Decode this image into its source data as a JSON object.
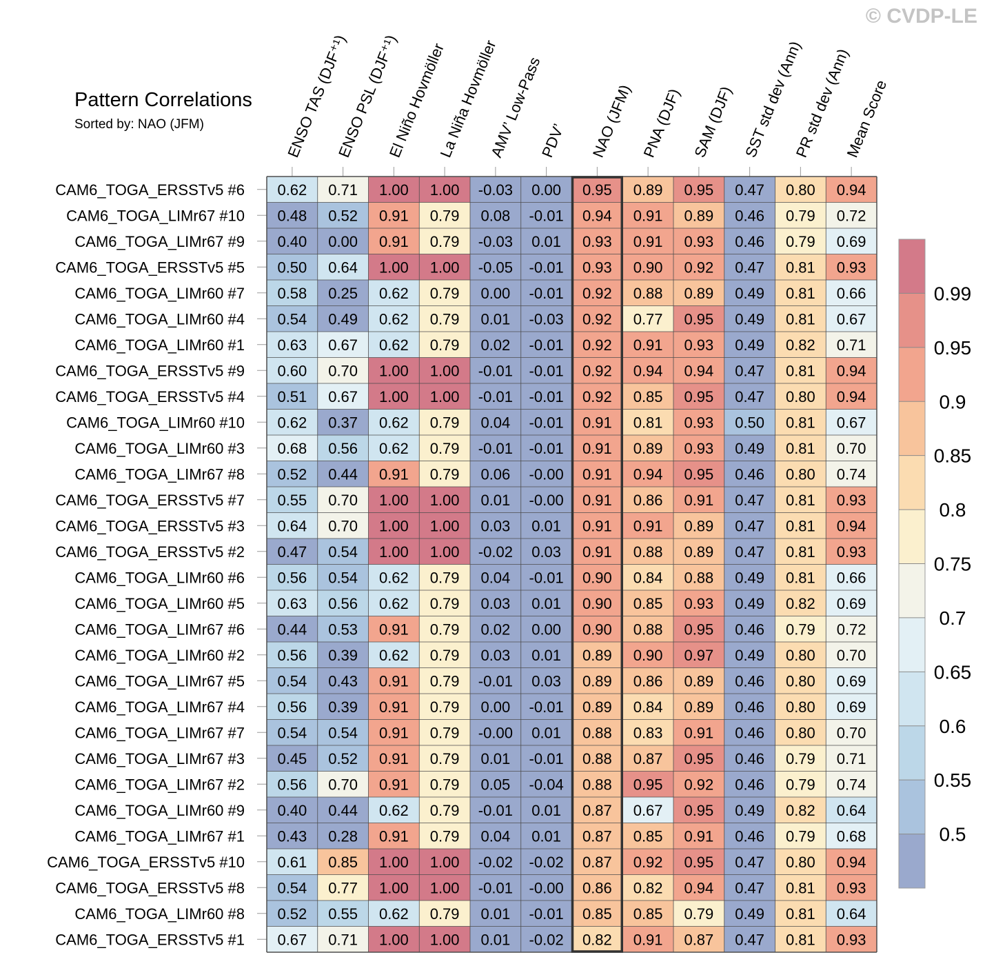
{
  "watermark": "© CVDP-LE",
  "chart_data": {
    "type": "heatmap",
    "title": "Pattern Correlations",
    "subtitle": "Sorted by: NAO (JFM)",
    "highlight_column": "NAO (JFM)",
    "columns": [
      "ENSO TAS (DJF⁺¹)",
      "ENSO PSL (DJF⁺¹)",
      "El Niño Hovmöller",
      "La Niña Hovmöller",
      "AMV’ Low-Pass",
      "PDV’",
      "NAO (JFM)",
      "PNA (DJF)",
      "SAM (DJF)",
      "SST std dev (Ann)",
      "PR std dev (Ann)",
      "Mean Score"
    ],
    "rows": [
      {
        "label": "CAM6_TOGA_ERSSTv5 #6",
        "values": [
          "0.62",
          "0.71",
          "1.00",
          "1.00",
          "-0.03",
          "0.00",
          "0.95",
          "0.89",
          "0.95",
          "0.47",
          "0.80",
          "0.94"
        ]
      },
      {
        "label": "CAM6_TOGA_LIMr67 #10",
        "values": [
          "0.48",
          "0.52",
          "0.91",
          "0.79",
          "0.08",
          "-0.01",
          "0.94",
          "0.91",
          "0.89",
          "0.46",
          "0.79",
          "0.72"
        ]
      },
      {
        "label": "CAM6_TOGA_LIMr67 #9",
        "values": [
          "0.40",
          "0.00",
          "0.91",
          "0.79",
          "-0.03",
          "0.01",
          "0.93",
          "0.91",
          "0.93",
          "0.46",
          "0.79",
          "0.69"
        ]
      },
      {
        "label": "CAM6_TOGA_ERSSTv5 #5",
        "values": [
          "0.50",
          "0.64",
          "1.00",
          "1.00",
          "-0.05",
          "-0.01",
          "0.93",
          "0.90",
          "0.92",
          "0.47",
          "0.81",
          "0.93"
        ]
      },
      {
        "label": "CAM6_TOGA_LIMr60 #7",
        "values": [
          "0.58",
          "0.25",
          "0.62",
          "0.79",
          "0.00",
          "-0.01",
          "0.92",
          "0.88",
          "0.89",
          "0.49",
          "0.81",
          "0.66"
        ]
      },
      {
        "label": "CAM6_TOGA_LIMr60 #4",
        "values": [
          "0.54",
          "0.49",
          "0.62",
          "0.79",
          "0.01",
          "-0.03",
          "0.92",
          "0.77",
          "0.95",
          "0.49",
          "0.81",
          "0.67"
        ]
      },
      {
        "label": "CAM6_TOGA_LIMr60 #1",
        "values": [
          "0.63",
          "0.67",
          "0.62",
          "0.79",
          "0.02",
          "-0.01",
          "0.92",
          "0.91",
          "0.93",
          "0.49",
          "0.82",
          "0.71"
        ]
      },
      {
        "label": "CAM6_TOGA_ERSSTv5 #9",
        "values": [
          "0.60",
          "0.70",
          "1.00",
          "1.00",
          "-0.01",
          "-0.01",
          "0.92",
          "0.94",
          "0.94",
          "0.47",
          "0.81",
          "0.94"
        ]
      },
      {
        "label": "CAM6_TOGA_ERSSTv5 #4",
        "values": [
          "0.51",
          "0.67",
          "1.00",
          "1.00",
          "-0.01",
          "-0.01",
          "0.92",
          "0.85",
          "0.95",
          "0.47",
          "0.80",
          "0.94"
        ]
      },
      {
        "label": "CAM6_TOGA_LIMr60 #10",
        "values": [
          "0.62",
          "0.37",
          "0.62",
          "0.79",
          "0.04",
          "-0.01",
          "0.91",
          "0.81",
          "0.93",
          "0.50",
          "0.81",
          "0.67"
        ]
      },
      {
        "label": "CAM6_TOGA_LIMr60 #3",
        "values": [
          "0.68",
          "0.56",
          "0.62",
          "0.79",
          "-0.01",
          "-0.01",
          "0.91",
          "0.89",
          "0.93",
          "0.49",
          "0.81",
          "0.70"
        ]
      },
      {
        "label": "CAM6_TOGA_LIMr67 #8",
        "values": [
          "0.52",
          "0.44",
          "0.91",
          "0.79",
          "0.06",
          "-0.00",
          "0.91",
          "0.94",
          "0.95",
          "0.46",
          "0.80",
          "0.74"
        ]
      },
      {
        "label": "CAM6_TOGA_ERSSTv5 #7",
        "values": [
          "0.55",
          "0.70",
          "1.00",
          "1.00",
          "0.01",
          "-0.00",
          "0.91",
          "0.86",
          "0.91",
          "0.47",
          "0.81",
          "0.93"
        ]
      },
      {
        "label": "CAM6_TOGA_ERSSTv5 #3",
        "values": [
          "0.64",
          "0.70",
          "1.00",
          "1.00",
          "0.03",
          "0.01",
          "0.91",
          "0.91",
          "0.89",
          "0.47",
          "0.81",
          "0.94"
        ]
      },
      {
        "label": "CAM6_TOGA_ERSSTv5 #2",
        "values": [
          "0.47",
          "0.54",
          "1.00",
          "1.00",
          "-0.02",
          "0.03",
          "0.91",
          "0.88",
          "0.89",
          "0.47",
          "0.81",
          "0.93"
        ]
      },
      {
        "label": "CAM6_TOGA_LIMr60 #6",
        "values": [
          "0.56",
          "0.54",
          "0.62",
          "0.79",
          "0.04",
          "-0.01",
          "0.90",
          "0.84",
          "0.88",
          "0.49",
          "0.81",
          "0.66"
        ]
      },
      {
        "label": "CAM6_TOGA_LIMr60 #5",
        "values": [
          "0.63",
          "0.56",
          "0.62",
          "0.79",
          "0.03",
          "0.01",
          "0.90",
          "0.85",
          "0.93",
          "0.49",
          "0.82",
          "0.69"
        ]
      },
      {
        "label": "CAM6_TOGA_LIMr67 #6",
        "values": [
          "0.44",
          "0.53",
          "0.91",
          "0.79",
          "0.02",
          "0.00",
          "0.90",
          "0.88",
          "0.95",
          "0.46",
          "0.79",
          "0.72"
        ]
      },
      {
        "label": "CAM6_TOGA_LIMr60 #2",
        "values": [
          "0.56",
          "0.39",
          "0.62",
          "0.79",
          "0.03",
          "0.01",
          "0.89",
          "0.90",
          "0.97",
          "0.49",
          "0.80",
          "0.70"
        ]
      },
      {
        "label": "CAM6_TOGA_LIMr67 #5",
        "values": [
          "0.54",
          "0.43",
          "0.91",
          "0.79",
          "-0.01",
          "0.03",
          "0.89",
          "0.86",
          "0.89",
          "0.46",
          "0.80",
          "0.69"
        ]
      },
      {
        "label": "CAM6_TOGA_LIMr67 #4",
        "values": [
          "0.56",
          "0.39",
          "0.91",
          "0.79",
          "0.00",
          "-0.01",
          "0.89",
          "0.84",
          "0.89",
          "0.46",
          "0.80",
          "0.69"
        ]
      },
      {
        "label": "CAM6_TOGA_LIMr67 #7",
        "values": [
          "0.54",
          "0.54",
          "0.91",
          "0.79",
          "-0.00",
          "0.01",
          "0.88",
          "0.83",
          "0.91",
          "0.46",
          "0.80",
          "0.70"
        ]
      },
      {
        "label": "CAM6_TOGA_LIMr67 #3",
        "values": [
          "0.45",
          "0.52",
          "0.91",
          "0.79",
          "0.01",
          "-0.01",
          "0.88",
          "0.87",
          "0.95",
          "0.46",
          "0.79",
          "0.71"
        ]
      },
      {
        "label": "CAM6_TOGA_LIMr67 #2",
        "values": [
          "0.56",
          "0.70",
          "0.91",
          "0.79",
          "0.05",
          "-0.04",
          "0.88",
          "0.95",
          "0.92",
          "0.46",
          "0.79",
          "0.74"
        ]
      },
      {
        "label": "CAM6_TOGA_LIMr60 #9",
        "values": [
          "0.40",
          "0.44",
          "0.62",
          "0.79",
          "-0.01",
          "0.01",
          "0.87",
          "0.67",
          "0.95",
          "0.49",
          "0.82",
          "0.64"
        ]
      },
      {
        "label": "CAM6_TOGA_LIMr67 #1",
        "values": [
          "0.43",
          "0.28",
          "0.91",
          "0.79",
          "0.04",
          "0.01",
          "0.87",
          "0.85",
          "0.91",
          "0.46",
          "0.79",
          "0.68"
        ]
      },
      {
        "label": "CAM6_TOGA_ERSSTv5 #10",
        "values": [
          "0.61",
          "0.85",
          "1.00",
          "1.00",
          "-0.02",
          "-0.02",
          "0.87",
          "0.92",
          "0.95",
          "0.47",
          "0.80",
          "0.94"
        ]
      },
      {
        "label": "CAM6_TOGA_ERSSTv5 #8",
        "values": [
          "0.54",
          "0.77",
          "1.00",
          "1.00",
          "-0.01",
          "-0.00",
          "0.86",
          "0.82",
          "0.94",
          "0.47",
          "0.81",
          "0.93"
        ]
      },
      {
        "label": "CAM6_TOGA_LIMr60 #8",
        "values": [
          "0.52",
          "0.55",
          "0.62",
          "0.79",
          "0.01",
          "-0.01",
          "0.85",
          "0.85",
          "0.79",
          "0.49",
          "0.81",
          "0.64"
        ]
      },
      {
        "label": "CAM6_TOGA_ERSSTv5 #1",
        "values": [
          "0.67",
          "0.71",
          "1.00",
          "1.00",
          "0.01",
          "-0.02",
          "0.82",
          "0.91",
          "0.87",
          "0.47",
          "0.81",
          "0.93"
        ]
      }
    ],
    "colorbar": {
      "levels": [
        "0.5",
        "0.55",
        "0.6",
        "0.65",
        "0.7",
        "0.75",
        "0.8",
        "0.85",
        "0.9",
        "0.95",
        "0.99"
      ],
      "colors": [
        "#9aa9cd",
        "#aac3de",
        "#bcd7e8",
        "#d0e5f0",
        "#e3f0f5",
        "#f3f3e9",
        "#fbf0ce",
        "#fbdcb1",
        "#f8c49c",
        "#f2a58e",
        "#e69189",
        "#d37a89"
      ]
    }
  }
}
